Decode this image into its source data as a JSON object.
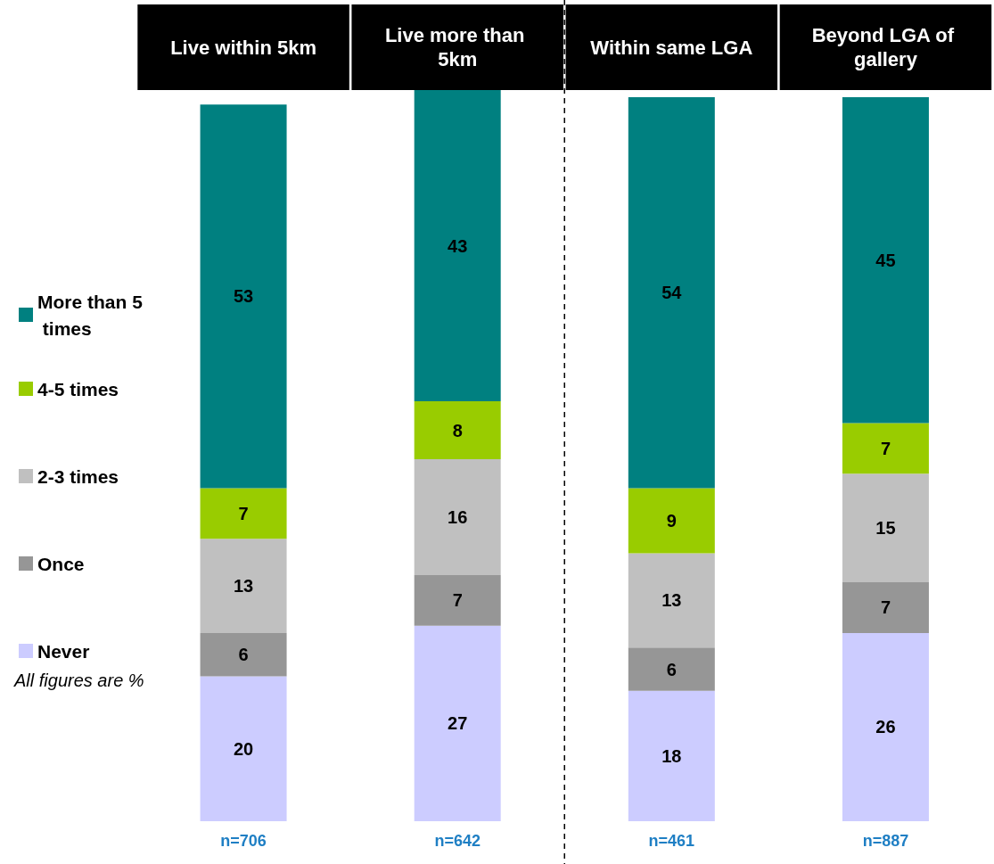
{
  "chart_data": {
    "type": "bar",
    "stacked": true,
    "categories": [
      "Live within 5km",
      "Live more than 5km",
      "Within same LGA",
      "Beyond LGA of gallery"
    ],
    "series": [
      {
        "name": "Never",
        "color": "#ccccff",
        "values": [
          20,
          27,
          18,
          26
        ]
      },
      {
        "name": "Once",
        "color": "#969696",
        "values": [
          6,
          7,
          6,
          7
        ]
      },
      {
        "name": "2-3 times",
        "color": "#c0c0c0",
        "values": [
          13,
          16,
          13,
          15
        ]
      },
      {
        "name": "4-5 times",
        "color": "#99cc00",
        "values": [
          7,
          8,
          9,
          7
        ]
      },
      {
        "name": "More than 5 times",
        "color": "#008080",
        "values": [
          53,
          43,
          54,
          45
        ]
      }
    ],
    "data_labels": true,
    "legend": "left",
    "annotations": [
      "All figures are %",
      "n=706",
      "n=642",
      "n=461",
      "n=887"
    ]
  }
}
